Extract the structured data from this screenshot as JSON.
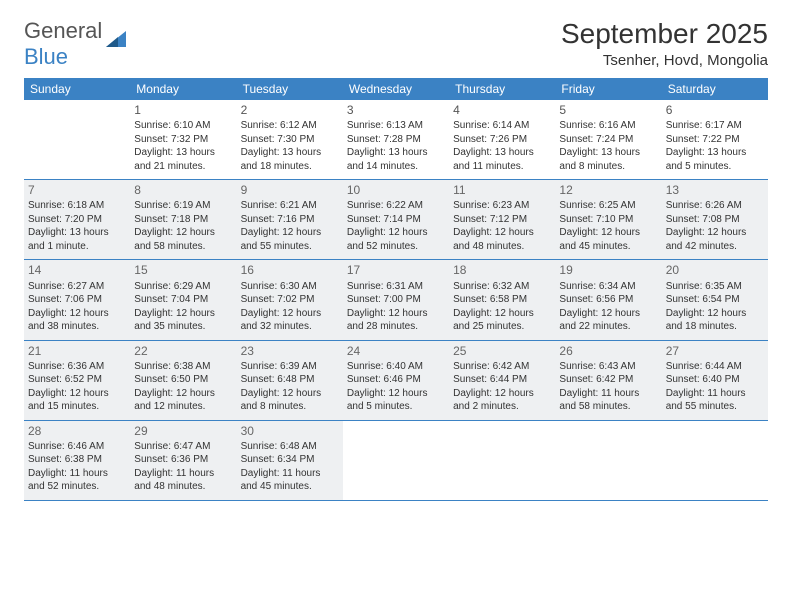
{
  "logo": {
    "text1": "General",
    "text2": "Blue"
  },
  "title": "September 2025",
  "location": "Tsenher, Hovd, Mongolia",
  "colors": {
    "header_bg": "#3b82c4",
    "shade_bg": "#eef0f2",
    "text": "#333333"
  },
  "dayHeaders": [
    "Sunday",
    "Monday",
    "Tuesday",
    "Wednesday",
    "Thursday",
    "Friday",
    "Saturday"
  ],
  "weeks": [
    [
      {
        "empty": true
      },
      {
        "num": "1",
        "sunrise": "Sunrise: 6:10 AM",
        "sunset": "Sunset: 7:32 PM",
        "day1": "Daylight: 13 hours",
        "day2": "and 21 minutes."
      },
      {
        "num": "2",
        "sunrise": "Sunrise: 6:12 AM",
        "sunset": "Sunset: 7:30 PM",
        "day1": "Daylight: 13 hours",
        "day2": "and 18 minutes."
      },
      {
        "num": "3",
        "sunrise": "Sunrise: 6:13 AM",
        "sunset": "Sunset: 7:28 PM",
        "day1": "Daylight: 13 hours",
        "day2": "and 14 minutes."
      },
      {
        "num": "4",
        "sunrise": "Sunrise: 6:14 AM",
        "sunset": "Sunset: 7:26 PM",
        "day1": "Daylight: 13 hours",
        "day2": "and 11 minutes."
      },
      {
        "num": "5",
        "sunrise": "Sunrise: 6:16 AM",
        "sunset": "Sunset: 7:24 PM",
        "day1": "Daylight: 13 hours",
        "day2": "and 8 minutes."
      },
      {
        "num": "6",
        "sunrise": "Sunrise: 6:17 AM",
        "sunset": "Sunset: 7:22 PM",
        "day1": "Daylight: 13 hours",
        "day2": "and 5 minutes."
      }
    ],
    [
      {
        "num": "7",
        "shaded": true,
        "sunrise": "Sunrise: 6:18 AM",
        "sunset": "Sunset: 7:20 PM",
        "day1": "Daylight: 13 hours",
        "day2": "and 1 minute."
      },
      {
        "num": "8",
        "shaded": true,
        "sunrise": "Sunrise: 6:19 AM",
        "sunset": "Sunset: 7:18 PM",
        "day1": "Daylight: 12 hours",
        "day2": "and 58 minutes."
      },
      {
        "num": "9",
        "shaded": true,
        "sunrise": "Sunrise: 6:21 AM",
        "sunset": "Sunset: 7:16 PM",
        "day1": "Daylight: 12 hours",
        "day2": "and 55 minutes."
      },
      {
        "num": "10",
        "shaded": true,
        "sunrise": "Sunrise: 6:22 AM",
        "sunset": "Sunset: 7:14 PM",
        "day1": "Daylight: 12 hours",
        "day2": "and 52 minutes."
      },
      {
        "num": "11",
        "shaded": true,
        "sunrise": "Sunrise: 6:23 AM",
        "sunset": "Sunset: 7:12 PM",
        "day1": "Daylight: 12 hours",
        "day2": "and 48 minutes."
      },
      {
        "num": "12",
        "shaded": true,
        "sunrise": "Sunrise: 6:25 AM",
        "sunset": "Sunset: 7:10 PM",
        "day1": "Daylight: 12 hours",
        "day2": "and 45 minutes."
      },
      {
        "num": "13",
        "shaded": true,
        "sunrise": "Sunrise: 6:26 AM",
        "sunset": "Sunset: 7:08 PM",
        "day1": "Daylight: 12 hours",
        "day2": "and 42 minutes."
      }
    ],
    [
      {
        "num": "14",
        "shaded": true,
        "sunrise": "Sunrise: 6:27 AM",
        "sunset": "Sunset: 7:06 PM",
        "day1": "Daylight: 12 hours",
        "day2": "and 38 minutes."
      },
      {
        "num": "15",
        "shaded": true,
        "sunrise": "Sunrise: 6:29 AM",
        "sunset": "Sunset: 7:04 PM",
        "day1": "Daylight: 12 hours",
        "day2": "and 35 minutes."
      },
      {
        "num": "16",
        "shaded": true,
        "sunrise": "Sunrise: 6:30 AM",
        "sunset": "Sunset: 7:02 PM",
        "day1": "Daylight: 12 hours",
        "day2": "and 32 minutes."
      },
      {
        "num": "17",
        "shaded": true,
        "sunrise": "Sunrise: 6:31 AM",
        "sunset": "Sunset: 7:00 PM",
        "day1": "Daylight: 12 hours",
        "day2": "and 28 minutes."
      },
      {
        "num": "18",
        "shaded": true,
        "sunrise": "Sunrise: 6:32 AM",
        "sunset": "Sunset: 6:58 PM",
        "day1": "Daylight: 12 hours",
        "day2": "and 25 minutes."
      },
      {
        "num": "19",
        "shaded": true,
        "sunrise": "Sunrise: 6:34 AM",
        "sunset": "Sunset: 6:56 PM",
        "day1": "Daylight: 12 hours",
        "day2": "and 22 minutes."
      },
      {
        "num": "20",
        "shaded": true,
        "sunrise": "Sunrise: 6:35 AM",
        "sunset": "Sunset: 6:54 PM",
        "day1": "Daylight: 12 hours",
        "day2": "and 18 minutes."
      }
    ],
    [
      {
        "num": "21",
        "shaded": true,
        "sunrise": "Sunrise: 6:36 AM",
        "sunset": "Sunset: 6:52 PM",
        "day1": "Daylight: 12 hours",
        "day2": "and 15 minutes."
      },
      {
        "num": "22",
        "shaded": true,
        "sunrise": "Sunrise: 6:38 AM",
        "sunset": "Sunset: 6:50 PM",
        "day1": "Daylight: 12 hours",
        "day2": "and 12 minutes."
      },
      {
        "num": "23",
        "shaded": true,
        "sunrise": "Sunrise: 6:39 AM",
        "sunset": "Sunset: 6:48 PM",
        "day1": "Daylight: 12 hours",
        "day2": "and 8 minutes."
      },
      {
        "num": "24",
        "shaded": true,
        "sunrise": "Sunrise: 6:40 AM",
        "sunset": "Sunset: 6:46 PM",
        "day1": "Daylight: 12 hours",
        "day2": "and 5 minutes."
      },
      {
        "num": "25",
        "shaded": true,
        "sunrise": "Sunrise: 6:42 AM",
        "sunset": "Sunset: 6:44 PM",
        "day1": "Daylight: 12 hours",
        "day2": "and 2 minutes."
      },
      {
        "num": "26",
        "shaded": true,
        "sunrise": "Sunrise: 6:43 AM",
        "sunset": "Sunset: 6:42 PM",
        "day1": "Daylight: 11 hours",
        "day2": "and 58 minutes."
      },
      {
        "num": "27",
        "shaded": true,
        "sunrise": "Sunrise: 6:44 AM",
        "sunset": "Sunset: 6:40 PM",
        "day1": "Daylight: 11 hours",
        "day2": "and 55 minutes."
      }
    ],
    [
      {
        "num": "28",
        "shaded": true,
        "sunrise": "Sunrise: 6:46 AM",
        "sunset": "Sunset: 6:38 PM",
        "day1": "Daylight: 11 hours",
        "day2": "and 52 minutes."
      },
      {
        "num": "29",
        "shaded": true,
        "sunrise": "Sunrise: 6:47 AM",
        "sunset": "Sunset: 6:36 PM",
        "day1": "Daylight: 11 hours",
        "day2": "and 48 minutes."
      },
      {
        "num": "30",
        "shaded": true,
        "sunrise": "Sunrise: 6:48 AM",
        "sunset": "Sunset: 6:34 PM",
        "day1": "Daylight: 11 hours",
        "day2": "and 45 minutes."
      },
      {
        "empty": true
      },
      {
        "empty": true
      },
      {
        "empty": true
      },
      {
        "empty": true
      }
    ]
  ]
}
